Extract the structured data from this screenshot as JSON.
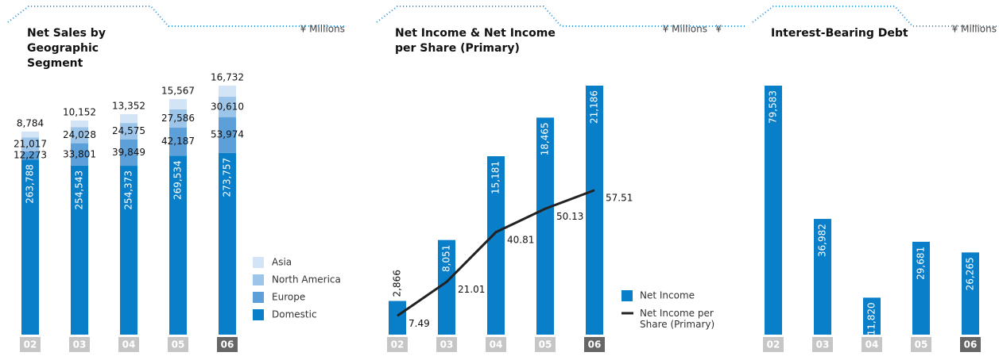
{
  "chart_data": [
    {
      "type": "stacked_bar",
      "title": "Net Sales by Geographic Segment",
      "unit": "¥ Millions",
      "categories": [
        "02",
        "03",
        "04",
        "05",
        "06"
      ],
      "series": [
        {
          "name": "Domestic",
          "color": "#0a7fc9",
          "values": [
            263788,
            254543,
            254373,
            269534,
            273757
          ],
          "value_labels": [
            "263,788",
            "254,543",
            "254,373",
            "269,534",
            "273,757"
          ]
        },
        {
          "name": "Europe",
          "color": "#5c9fd9",
          "values": [
            12273,
            33801,
            39849,
            42187,
            53974
          ],
          "value_labels": [
            "12,273",
            "33,801",
            "39,849",
            "42,187",
            "53,974"
          ]
        },
        {
          "name": "North America",
          "color": "#9dc5ea",
          "values": [
            21017,
            24028,
            24575,
            27586,
            30610
          ],
          "value_labels": [
            "21,017",
            "24,028",
            "24,575",
            "27,586",
            "30,610"
          ]
        },
        {
          "name": "Asia",
          "color": "#d2e4f5",
          "values": [
            8784,
            10152,
            13352,
            15567,
            16732
          ],
          "value_labels": [
            "8,784",
            "10,152",
            "13,352",
            "15,567",
            "16,732"
          ]
        }
      ]
    },
    {
      "type": "bar_line",
      "title": "Net Income & Net Income per Share (Primary)",
      "unit": "¥ Millions",
      "unit2": "¥",
      "categories": [
        "02",
        "03",
        "04",
        "05",
        "06"
      ],
      "series": [
        {
          "name": "Net Income",
          "color": "#0a7fc9",
          "values": [
            2866,
            8051,
            15181,
            18465,
            21186
          ],
          "value_labels": [
            "2,866",
            "8,051",
            "15,181",
            "18,465",
            "21,186"
          ]
        },
        {
          "name": "Net Income per Share (Primary)",
          "color": "#222222",
          "axis": "y2",
          "values": [
            7.49,
            21.01,
            40.81,
            50.13,
            57.51
          ]
        }
      ]
    },
    {
      "type": "bar",
      "title": "Interest-Bearing Debt",
      "unit": "¥ Millions",
      "categories": [
        "02",
        "03",
        "04",
        "05",
        "06"
      ],
      "series": [
        {
          "name": "Interest-Bearing Debt",
          "color": "#0a7fc9",
          "values": [
            79583,
            36982,
            11820,
            29681,
            26265
          ],
          "value_labels": [
            "79,583",
            "36,982",
            "11,820",
            "29,681",
            "26,265"
          ]
        }
      ]
    }
  ]
}
